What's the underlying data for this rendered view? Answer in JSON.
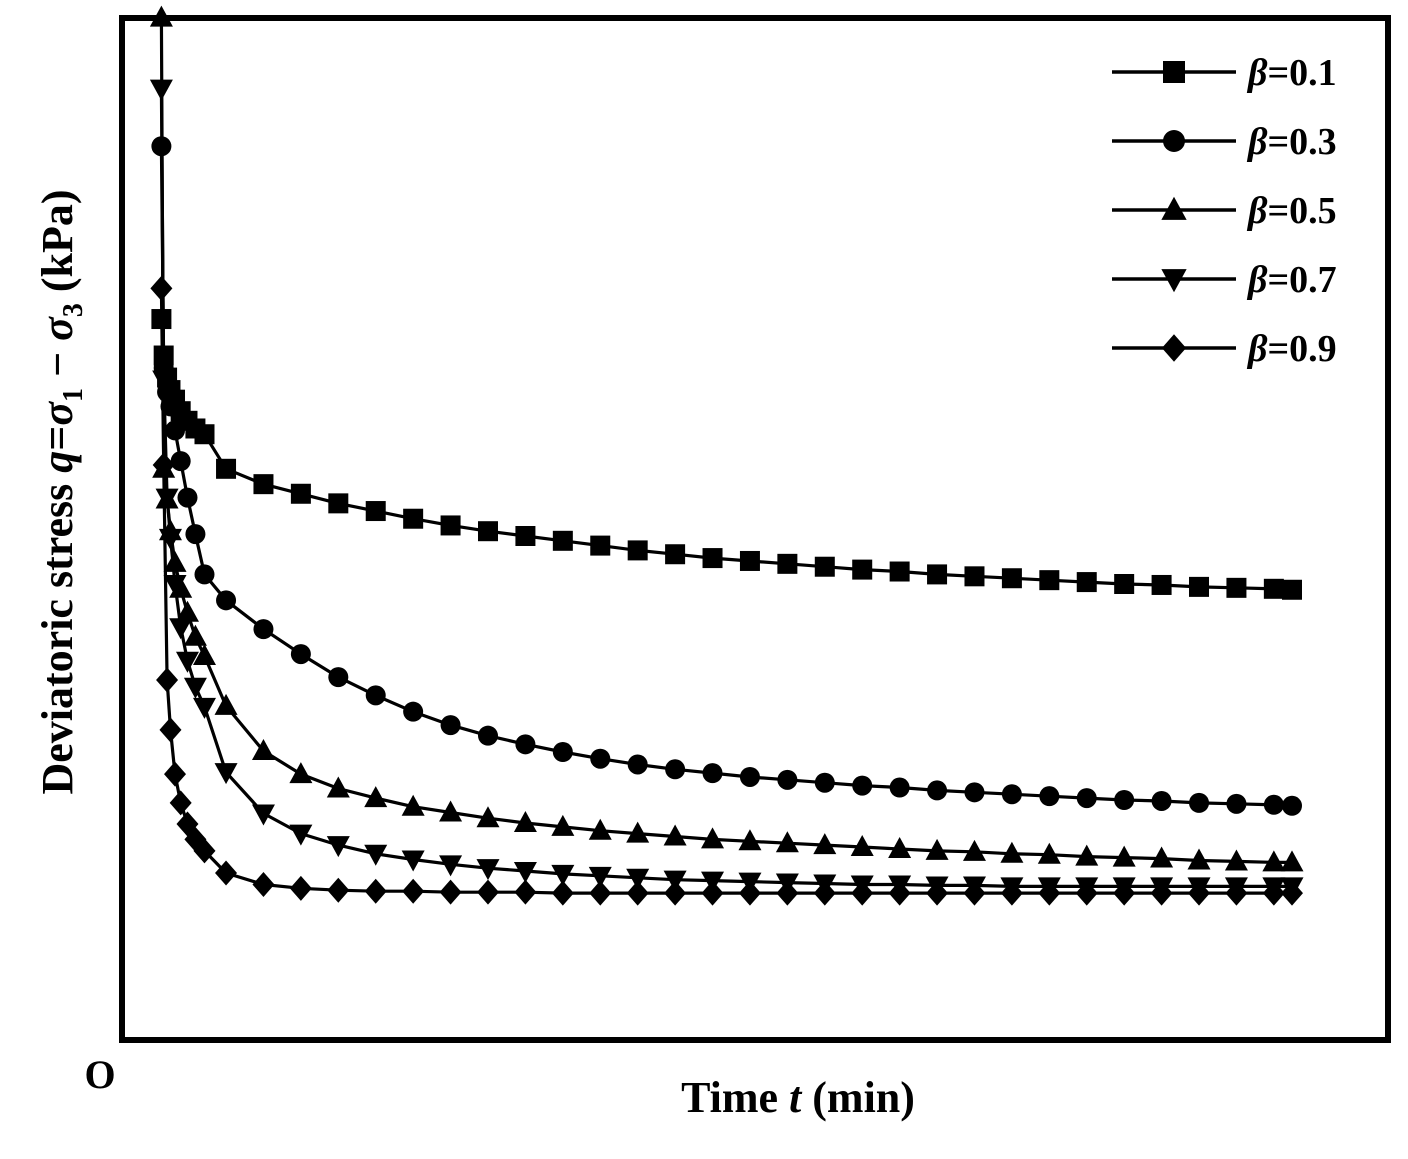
{
  "chart_data": {
    "type": "line",
    "title": "",
    "xlabel": "Time t (min)",
    "xlabel_parts": {
      "prefix": "Time ",
      "var": "t",
      "suffix": " (min)"
    },
    "ylabel": "Deviatoric stress q=σ1 − σ3 (kPa)",
    "ylabel_parts": {
      "prefix": "Deviatoric stress ",
      "q": "q",
      "eq": "=",
      "s1": "σ",
      "sub1": "1",
      "minus": " − ",
      "s3": "σ",
      "sub3": "3",
      "suffix": " (kPa)"
    },
    "origin_label": "O",
    "xlim": [
      0,
      1.0
    ],
    "ylim": [
      0,
      1.0
    ],
    "x_ticks_shown": false,
    "y_ticks_shown": false,
    "grid": false,
    "legend_position": "top-right",
    "x": [
      0.003,
      0.005,
      0.008,
      0.011,
      0.015,
      0.02,
      0.026,
      0.033,
      0.041,
      0.06,
      0.093,
      0.126,
      0.159,
      0.192,
      0.225,
      0.258,
      0.291,
      0.324,
      0.357,
      0.39,
      0.423,
      0.456,
      0.489,
      0.522,
      0.555,
      0.588,
      0.621,
      0.654,
      0.687,
      0.72,
      0.753,
      0.786,
      0.819,
      0.852,
      0.885,
      0.918,
      0.951,
      0.984,
      1.0
    ],
    "series": [
      {
        "name": "β=0.1",
        "marker": "square",
        "values": [
          0.676,
          0.638,
          0.615,
          0.602,
          0.592,
          0.58,
          0.57,
          0.562,
          0.556,
          0.52,
          0.504,
          0.494,
          0.484,
          0.476,
          0.468,
          0.461,
          0.455,
          0.45,
          0.445,
          0.44,
          0.435,
          0.431,
          0.427,
          0.424,
          0.421,
          0.418,
          0.415,
          0.413,
          0.41,
          0.408,
          0.406,
          0.404,
          0.402,
          0.4,
          0.399,
          0.397,
          0.396,
          0.395,
          0.394
        ]
      },
      {
        "name": "β=0.3",
        "marker": "circle",
        "values": [
          0.856,
          0.625,
          0.6,
          0.585,
          0.56,
          0.528,
          0.49,
          0.452,
          0.41,
          0.383,
          0.353,
          0.327,
          0.303,
          0.284,
          0.267,
          0.253,
          0.242,
          0.233,
          0.225,
          0.218,
          0.212,
          0.207,
          0.203,
          0.199,
          0.196,
          0.193,
          0.19,
          0.188,
          0.185,
          0.183,
          0.181,
          0.179,
          0.177,
          0.175,
          0.174,
          0.172,
          0.171,
          0.17,
          0.169
        ]
      },
      {
        "name": "β=0.5",
        "marker": "triangle-up",
        "values": [
          0.99,
          0.52,
          0.488,
          0.455,
          0.422,
          0.395,
          0.37,
          0.345,
          0.325,
          0.273,
          0.226,
          0.202,
          0.187,
          0.177,
          0.168,
          0.162,
          0.156,
          0.151,
          0.147,
          0.143,
          0.14,
          0.137,
          0.134,
          0.132,
          0.13,
          0.128,
          0.126,
          0.124,
          0.122,
          0.121,
          0.119,
          0.118,
          0.116,
          0.115,
          0.114,
          0.112,
          0.111,
          0.11,
          0.11
        ]
      },
      {
        "name": "β=0.7",
        "marker": "triangle-down",
        "values": [
          0.916,
          0.613,
          0.49,
          0.448,
          0.4,
          0.355,
          0.32,
          0.293,
          0.272,
          0.204,
          0.161,
          0.14,
          0.128,
          0.119,
          0.113,
          0.108,
          0.104,
          0.101,
          0.098,
          0.096,
          0.094,
          0.092,
          0.091,
          0.09,
          0.089,
          0.088,
          0.087,
          0.087,
          0.086,
          0.086,
          0.085,
          0.085,
          0.085,
          0.085,
          0.085,
          0.085,
          0.085,
          0.085,
          0.085
        ]
      },
      {
        "name": "β=0.9",
        "marker": "diamond",
        "values": [
          0.708,
          0.524,
          0.3,
          0.248,
          0.202,
          0.172,
          0.15,
          0.134,
          0.122,
          0.099,
          0.087,
          0.083,
          0.081,
          0.08,
          0.08,
          0.079,
          0.079,
          0.079,
          0.078,
          0.078,
          0.078,
          0.078,
          0.078,
          0.078,
          0.078,
          0.078,
          0.078,
          0.078,
          0.078,
          0.078,
          0.078,
          0.078,
          0.078,
          0.078,
          0.078,
          0.078,
          0.078,
          0.078,
          0.078
        ]
      }
    ],
    "colors": {
      "line": "#000000",
      "frame": "#000000",
      "background": "#ffffff"
    }
  }
}
